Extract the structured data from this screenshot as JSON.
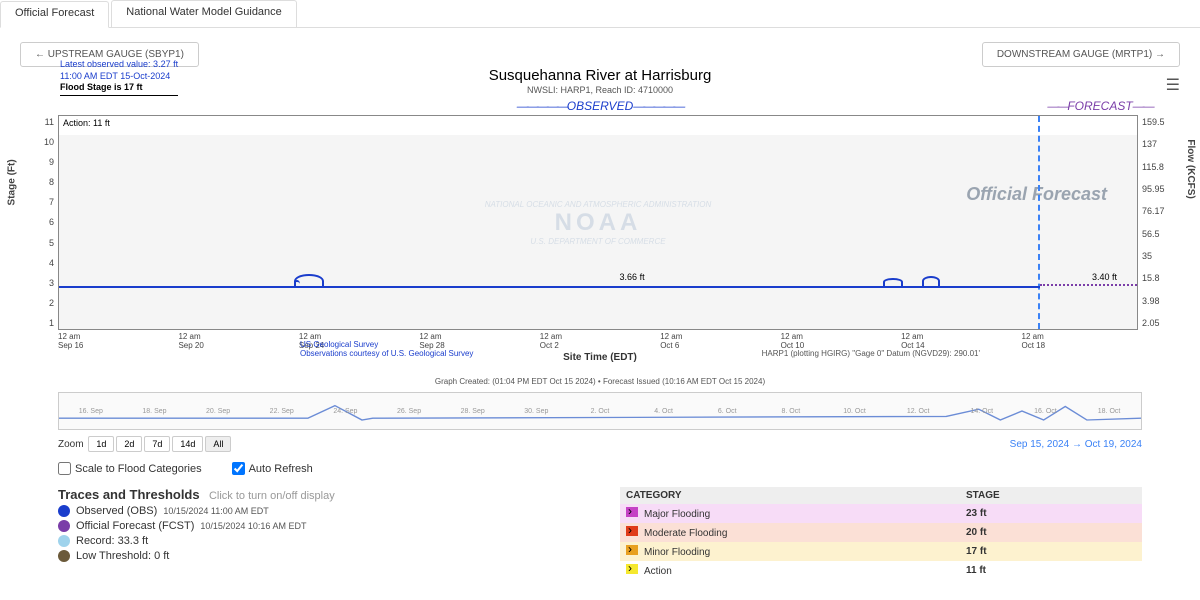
{
  "tabs": {
    "official": "Official Forecast",
    "nwm": "National Water Model Guidance"
  },
  "nav": {
    "upstream": "UPSTREAM GAUGE (SBYP1)",
    "downstream": "DOWNSTREAM GAUGE (MRTP1)"
  },
  "info": {
    "latest": "Latest observed value: 3.27 ft",
    "time": "11:00 AM EDT 15-Oct-2024",
    "flood": "Flood Stage is 17 ft"
  },
  "title": "Susquehanna River at Harrisburg",
  "subtitle": "NWSLI: HARP1, Reach ID: 4710000",
  "section": {
    "obs": "OBSERVED",
    "fcst": "FORECAST"
  },
  "chart": {
    "type": "line",
    "left_axis": {
      "label": "Stage (Ft)",
      "ticks": [
        "11",
        "10",
        "9",
        "8",
        "7",
        "6",
        "5",
        "4",
        "3",
        "2",
        "1"
      ],
      "ylim": [
        1,
        11
      ]
    },
    "right_axis": {
      "label": "Flow (KCFS)",
      "ticks": [
        "159.5",
        "137",
        "115.8",
        "95.95",
        "76.17",
        "56.5",
        "35",
        "15.8",
        "3.98",
        "2.05"
      ]
    },
    "action_label": "Action: 11 ft",
    "peak1": "3.66 ft",
    "peak2": "3.40 ft",
    "fcst_watermark": "Official Forecast",
    "xticks": [
      "12 am\nSep 16",
      "12 am\nSep 20",
      "12 am\nSep 24",
      "12 am\nSep 28",
      "12 am\nOct 2",
      "12 am\nOct 6",
      "12 am\nOct 10",
      "12 am\nOct 14",
      "12 am\nOct 18"
    ],
    "xtitle": "Site Time (EDT)",
    "credit1a": "US Geological Survey",
    "credit1b": "Observations courtesy of U.S. Geological Survey",
    "credit2": "HARP1 (plotting HGIRG) \"Gage 0\" Datum (NGVD29): 290.01'",
    "graph_note": "Graph Created: (01:04 PM EDT Oct 15 2024) • Forecast Issued (10:16 AM EDT Oct 15 2024)",
    "colors": {
      "obs": "#1a3dcc",
      "fcst": "#7a3da8",
      "grid_bg": "#f5f5f5",
      "divider": "#3b82f6"
    }
  },
  "nav_dates": [
    "16. Sep",
    "18. Sep",
    "20. Sep",
    "22. Sep",
    "24. Sep",
    "26. Sep",
    "28. Sep",
    "30. Sep",
    "2. Oct",
    "4. Oct",
    "6. Oct",
    "8. Oct",
    "10. Oct",
    "12. Oct",
    "14. Oct",
    "16. Oct",
    "18. Oct"
  ],
  "zoom": {
    "label": "Zoom",
    "buttons": [
      "1d",
      "2d",
      "7d",
      "14d",
      "All"
    ],
    "active": "All",
    "from": "Sep 15, 2024",
    "to": "Oct 19, 2024"
  },
  "opts": {
    "scale": "Scale to Flood Categories",
    "auto": "Auto Refresh"
  },
  "traces": {
    "title": "Traces and Thresholds",
    "hint": "Click to turn on/off display",
    "items": [
      {
        "color": "#1a3dcc",
        "label": "Observed (OBS)",
        "ts": "10/15/2024 11:00 AM EDT"
      },
      {
        "color": "#7a3da8",
        "label": "Official Forecast (FCST)",
        "ts": "10/15/2024 10:16 AM EDT"
      },
      {
        "color": "#9fd3ec",
        "label": "Record: 33.3 ft",
        "ts": ""
      },
      {
        "color": "#6b5a3a",
        "label": "Low Threshold: 0 ft",
        "ts": ""
      }
    ]
  },
  "cats": {
    "hdr1": "CATEGORY",
    "hdr2": "STAGE",
    "rows": [
      {
        "bg": "#f7dcf7",
        "chip": "#c542c5",
        "label": "Major Flooding",
        "stage": "23 ft"
      },
      {
        "bg": "#fbe0d6",
        "chip": "#e03b1a",
        "label": "Moderate Flooding",
        "stage": "20 ft"
      },
      {
        "bg": "#fdf2cf",
        "chip": "#e8a020",
        "label": "Minor Flooding",
        "stage": "17 ft"
      },
      {
        "bg": "#ffffff",
        "chip": "#f5e82e",
        "label": "Action",
        "stage": "11 ft"
      }
    ]
  }
}
